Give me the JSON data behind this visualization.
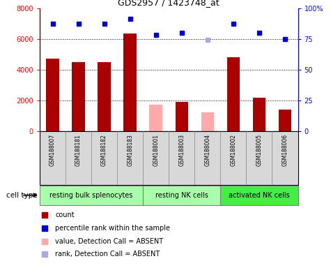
{
  "title": "GDS2957 / 1423748_at",
  "samples": [
    "GSM188007",
    "GSM188181",
    "GSM188182",
    "GSM188183",
    "GSM188001",
    "GSM188003",
    "GSM188004",
    "GSM188002",
    "GSM188005",
    "GSM188006"
  ],
  "counts": [
    4700,
    4500,
    4500,
    6350,
    1750,
    1900,
    1250,
    4800,
    2200,
    1400
  ],
  "count_absent": [
    false,
    false,
    false,
    false,
    true,
    false,
    true,
    false,
    false,
    false
  ],
  "percentile_ranks": [
    87,
    87,
    87,
    91,
    78,
    80,
    74,
    87,
    80,
    75
  ],
  "rank_absent": [
    false,
    false,
    false,
    false,
    false,
    false,
    true,
    false,
    false,
    false
  ],
  "ylim_left": [
    0,
    8000
  ],
  "ylim_right": [
    0,
    100
  ],
  "yticks_left": [
    0,
    2000,
    4000,
    6000,
    8000
  ],
  "yticks_right": [
    0,
    25,
    50,
    75,
    100
  ],
  "ytick_labels_right": [
    "0",
    "25",
    "50",
    "75",
    "100%"
  ],
  "groups": [
    {
      "label": "resting bulk splenocytes",
      "start": 0,
      "end": 3,
      "color": "#aaffaa"
    },
    {
      "label": "resting NK cells",
      "start": 4,
      "end": 6,
      "color": "#aaffaa"
    },
    {
      "label": "activated NK cells",
      "start": 7,
      "end": 9,
      "color": "#44ee44"
    }
  ],
  "bar_color_present": "#aa0000",
  "bar_color_absent": "#ffaaaa",
  "dot_color_present": "#0000cc",
  "dot_color_absent": "#aaaadd",
  "bar_width": 0.5,
  "bg_color": "#d8d8d8",
  "plot_bg": "white",
  "cell_type_label": "cell type"
}
